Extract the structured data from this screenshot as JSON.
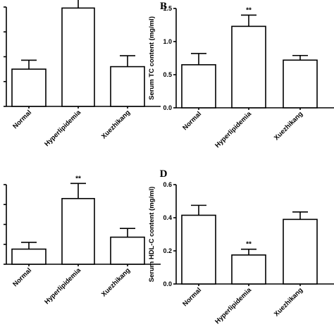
{
  "chart_data": [
    {
      "panel": "",
      "type": "bar",
      "categories": [
        "Normal",
        "Hyperlipidemia",
        "Xuezhikang"
      ],
      "values": [
        0.75,
        1.98,
        0.8
      ],
      "errors": [
        0.18,
        0.38,
        0.22
      ],
      "annotations": [
        "",
        "**",
        ""
      ],
      "ylabel": "",
      "ylim": [
        0,
        2.0
      ],
      "yticks": [],
      "grid": false
    },
    {
      "panel": "B",
      "type": "bar",
      "categories": [
        "Normal",
        "Hyperlipidemia",
        "Xuezhikang"
      ],
      "values": [
        0.65,
        1.23,
        0.72
      ],
      "errors": [
        0.17,
        0.17,
        0.07
      ],
      "annotations": [
        "",
        "**",
        ""
      ],
      "ylabel": "Serum TC content (mg/ml)",
      "ylim": [
        0,
        1.5
      ],
      "yticks": [
        "0.0",
        "0.5",
        "1.0",
        "1.5"
      ],
      "grid": false
    },
    {
      "panel": "",
      "type": "bar",
      "categories": [
        "Normal",
        "Hyperlipidemia",
        "Xuezhikang"
      ],
      "values": [
        0.38,
        1.65,
        0.68
      ],
      "errors": [
        0.17,
        0.38,
        0.22
      ],
      "annotations": [
        "",
        "**",
        ""
      ],
      "ylabel": "",
      "ylim": [
        0,
        2.0
      ],
      "yticks": [],
      "grid": false
    },
    {
      "panel": "D",
      "type": "bar",
      "categories": [
        "Normal",
        "Hyperlipidemia",
        "Xuezhikang"
      ],
      "values": [
        0.415,
        0.175,
        0.39
      ],
      "errors": [
        0.06,
        0.035,
        0.045
      ],
      "annotations": [
        "",
        "**",
        ""
      ],
      "ylabel": "Serum HDL-C content (mg/ml)",
      "ylim": [
        0,
        0.6
      ],
      "yticks": [
        "0.0",
        "0.2",
        "0.4",
        "0.6"
      ],
      "grid": false
    }
  ]
}
